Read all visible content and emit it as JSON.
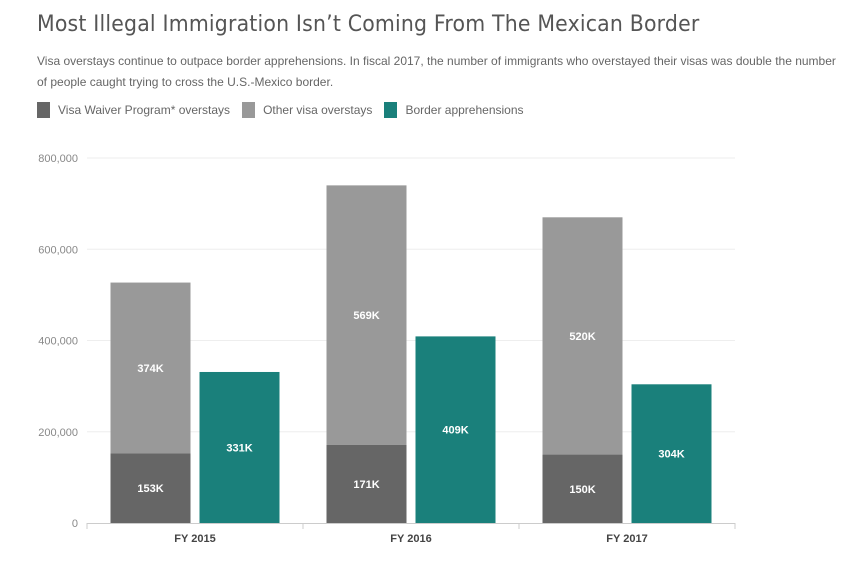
{
  "chart_data": {
    "type": "bar",
    "stacked": true,
    "title": "Most Illegal Immigration Isn’t Coming From The Mexican Border",
    "subtitle": "Visa overstays continue to outpace border apprehensions. In fiscal 2017, the number of immigrants who overstayed their visas was double the number of people caught trying to cross the U.S.-Mexico border.",
    "categories": [
      "FY 2015",
      "FY 2016",
      "FY 2017"
    ],
    "series": [
      {
        "name": "Visa Waiver Program* overstays",
        "stack": "overstays",
        "color": "#666666",
        "values": [
          153000,
          171000,
          150000
        ],
        "labels": [
          "153K",
          "171K",
          "150K"
        ]
      },
      {
        "name": "Other visa overstays",
        "stack": "overstays",
        "color": "#999999",
        "values": [
          374000,
          569000,
          520000
        ],
        "labels": [
          "374K",
          "569K",
          "520K"
        ]
      },
      {
        "name": "Border apprehensions",
        "stack": "border",
        "color": "#1a807b",
        "values": [
          331000,
          409000,
          304000
        ],
        "labels": [
          "331K",
          "409K",
          "304K"
        ]
      }
    ],
    "ylim": [
      0,
      800000
    ],
    "yticks": [
      "0",
      "200,000",
      "400,000",
      "600,000",
      "800,000"
    ],
    "grid": true,
    "legend": "top-left"
  }
}
